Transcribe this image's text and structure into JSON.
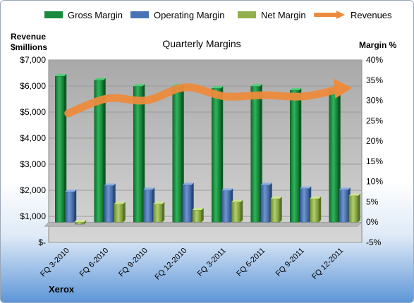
{
  "chart_data": {
    "type": "bar",
    "title": "Quarterly Margins",
    "categories": [
      "FQ 3-2010",
      "FQ 6-2010",
      "FQ 9-2010",
      "FQ 12-2010",
      "FQ 3-2011",
      "FQ 6-2011",
      "FQ 9-2011",
      "FQ 12-2011"
    ],
    "series": [
      {
        "name": "Gross Margin",
        "axis": "right",
        "type": "bar",
        "color": "#1a8a3e",
        "values": [
          36.0,
          35.0,
          33.5,
          33.5,
          33.0,
          33.5,
          32.5,
          32.5
        ]
      },
      {
        "name": "Operating Margin",
        "axis": "right",
        "type": "bar",
        "color": "#4a73b5",
        "values": [
          7.5,
          9.0,
          8.0,
          9.2,
          7.8,
          9.2,
          8.3,
          8.0
        ]
      },
      {
        "name": "Net Margin",
        "axis": "right",
        "type": "bar",
        "color": "#8fb04a",
        "values": [
          -0.5,
          4.5,
          4.5,
          3.0,
          5.0,
          5.8,
          5.8,
          6.5
        ]
      },
      {
        "name": "Revenues",
        "axis": "left",
        "type": "line",
        "color": "#ec8b3d",
        "values": [
          4950,
          5520,
          5450,
          5950,
          5600,
          5650,
          5600,
          5900
        ]
      }
    ],
    "y_left": {
      "label_line1": "Revenue",
      "label_line2": "$millions",
      "min": 0,
      "max": 7000,
      "ticks": [
        "$-",
        "$1,000",
        "$2,000",
        "$3,000",
        "$4,000",
        "$5,000",
        "$6,000",
        "$7,000"
      ]
    },
    "y_right": {
      "label": "Margin %",
      "min": -5,
      "max": 40,
      "ticks": [
        "-5%",
        "0%",
        "5%",
        "10%",
        "15%",
        "20%",
        "25%",
        "30%",
        "35%",
        "40%"
      ]
    },
    "legend_position": "top",
    "grid": true,
    "plot_background": "#c4c4c4"
  },
  "footer": {
    "company": "Xerox"
  }
}
